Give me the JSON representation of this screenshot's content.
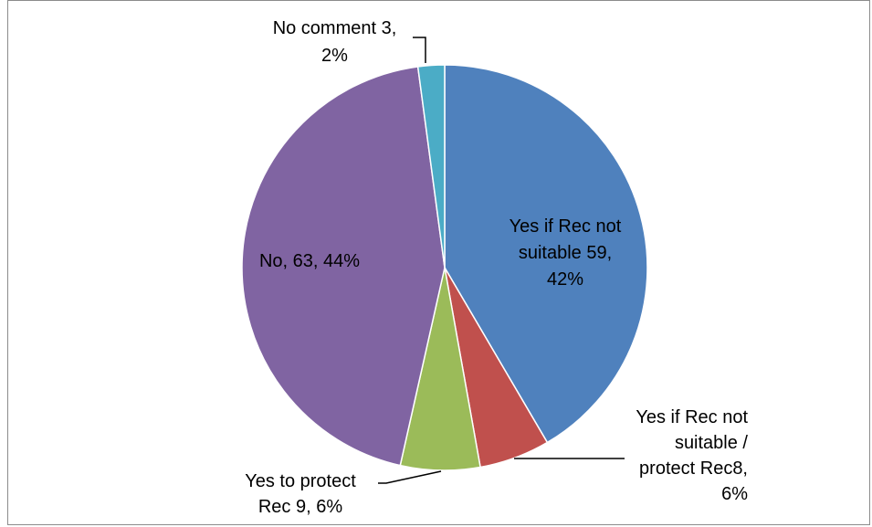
{
  "chart_data": {
    "type": "pie",
    "title": "",
    "slices": [
      {
        "name": "Yes if Rec not suitable",
        "value": 59,
        "percent": "42%",
        "color": "#4F81BD",
        "label_lines": [
          "Yes if Rec not",
          "suitable 59,",
          "42%"
        ]
      },
      {
        "name": "Yes if Rec not suitable / protect Rec8",
        "value": 8,
        "percent": "6%",
        "color": "#C0504D",
        "label_lines": [
          "Yes if Rec not",
          "suitable /",
          "protect Rec8,",
          "6%"
        ]
      },
      {
        "name": "Yes to protect Rec 9",
        "value": 9,
        "percent": "6%",
        "color": "#9BBB59",
        "label_lines": [
          "Yes to protect",
          "Rec 9, 6%"
        ]
      },
      {
        "name": "No",
        "value": 63,
        "percent": "44%",
        "color": "#8064A2",
        "label_lines": [
          "No, 63, 44%"
        ]
      },
      {
        "name": "No comment",
        "value": 3,
        "percent": "2%",
        "color": "#4BACC6",
        "label_lines": [
          "No comment 3,",
          "2%"
        ]
      }
    ],
    "legend": "none"
  }
}
